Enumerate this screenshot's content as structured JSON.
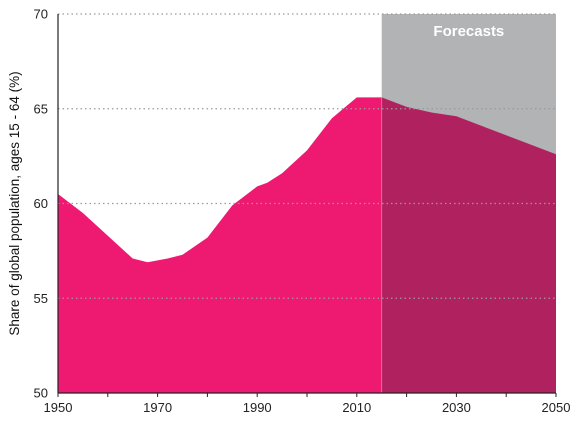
{
  "chart_data": {
    "type": "area",
    "ylabel": "Share of global population, ages 15 - 64 (%)",
    "xlabel": "",
    "xlim": [
      1950,
      2050
    ],
    "ylim": [
      50,
      70
    ],
    "x_ticks": [
      "1950",
      "1970",
      "1990",
      "2010",
      "2030",
      "2050"
    ],
    "y_ticks": [
      "50",
      "55",
      "60",
      "65",
      "70"
    ],
    "grid": "horizontal dotted",
    "annotation": "Forecasts",
    "forecast_start": 2015,
    "colors": {
      "historical": "#ee1a72",
      "forecast": "#b0225f",
      "forecast_band": "#b1b3b4",
      "grid": "#9a9a9a",
      "axis": "#222222"
    },
    "series": [
      {
        "x": [
          1950,
          1955,
          1960,
          1965,
          1968,
          1970,
          1972,
          1975,
          1980,
          1985,
          1990,
          1992,
          1995,
          2000,
          2005,
          2010,
          2012,
          2015,
          2020,
          2025,
          2030,
          2035,
          2040,
          2045,
          2050
        ],
        "values": [
          60.5,
          59.5,
          58.3,
          57.1,
          56.9,
          57.0,
          57.1,
          57.3,
          58.2,
          59.9,
          60.9,
          61.1,
          61.6,
          62.8,
          64.5,
          65.6,
          65.6,
          65.6,
          65.1,
          64.8,
          64.6,
          64.1,
          63.6,
          63.1,
          62.6
        ]
      }
    ]
  }
}
